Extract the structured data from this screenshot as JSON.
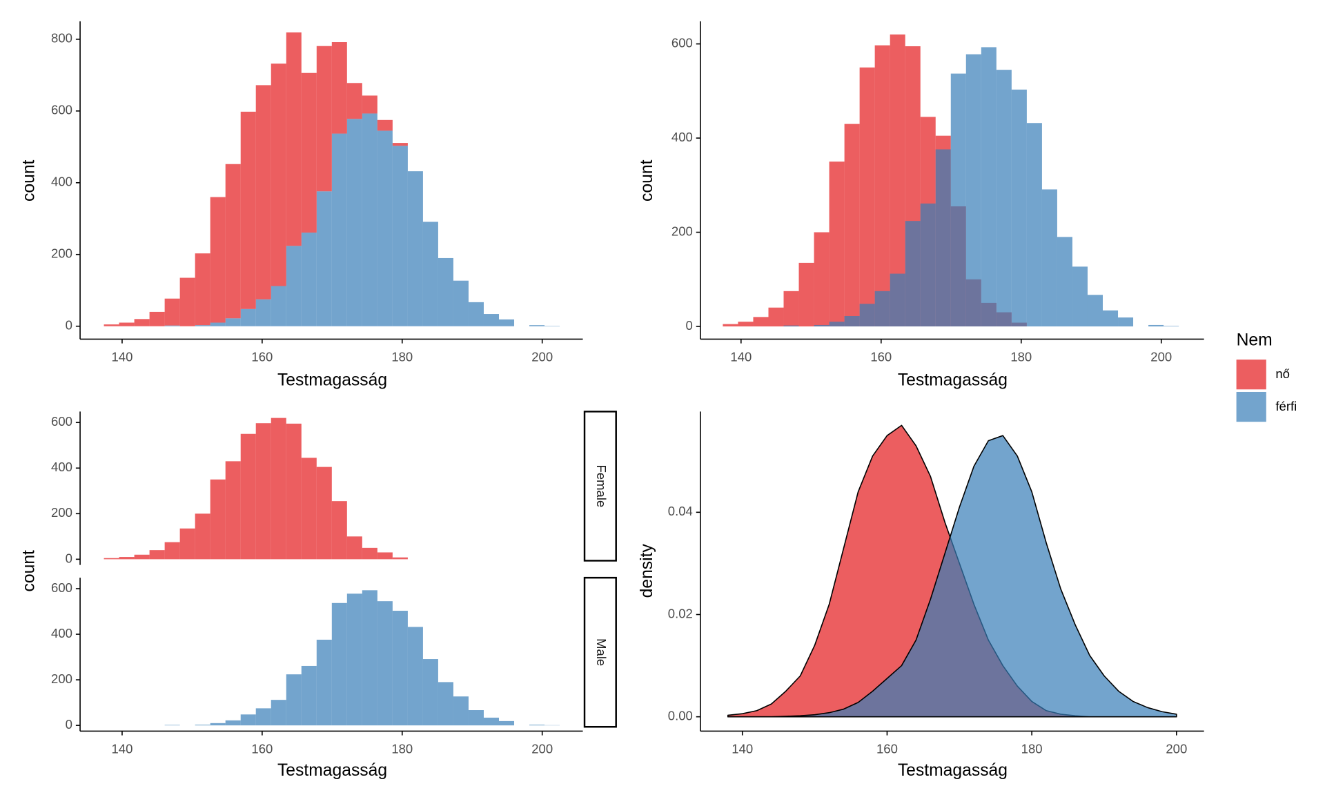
{
  "chart_data": [
    {
      "type": "histogram",
      "stacked": true,
      "x_label": "Testmagasság",
      "y_label": "count",
      "opacity": 0.7,
      "bins": [
        137.4,
        139.57,
        141.74,
        143.91,
        146.08,
        148.25,
        150.42,
        152.59,
        154.76,
        156.93,
        159.1,
        161.27,
        163.44,
        165.61,
        167.78,
        169.95,
        172.12,
        174.29,
        176.46,
        178.63,
        180.8,
        182.97,
        185.14,
        187.31,
        189.48,
        191.65,
        193.82,
        195.99,
        198.16,
        200.33,
        202.5
      ],
      "series": [
        {
          "name": "nő",
          "color": "#E41A1C",
          "values": [
            5,
            10,
            20,
            40,
            75,
            135,
            200,
            350,
            430,
            550,
            597,
            620,
            595,
            445,
            405,
            255,
            100,
            50,
            30,
            8,
            0,
            0,
            0,
            0,
            0,
            0,
            0,
            0,
            0,
            0
          ]
        },
        {
          "name": "férfi",
          "color": "#377EB8",
          "values": [
            0,
            0,
            0,
            0,
            2,
            0,
            3,
            10,
            22,
            48,
            75,
            112,
            224,
            261,
            376,
            537,
            578,
            593,
            545,
            503,
            432,
            291,
            190,
            127,
            67,
            34,
            19,
            0,
            3,
            1
          ]
        }
      ],
      "xlim": [
        134,
        205.8
      ],
      "ylim": [
        -36,
        850
      ],
      "xticks": [
        140,
        160,
        180,
        200
      ],
      "yticks": [
        0,
        200,
        400,
        600,
        800
      ]
    },
    {
      "type": "histogram",
      "stacked": false,
      "x_label": "Testmagasság",
      "y_label": "count",
      "opacity": 0.7,
      "legend_title": "Nem",
      "legend": "right",
      "bins": [
        137.4,
        139.57,
        141.74,
        143.91,
        146.08,
        148.25,
        150.42,
        152.59,
        154.76,
        156.93,
        159.1,
        161.27,
        163.44,
        165.61,
        167.78,
        169.95,
        172.12,
        174.29,
        176.46,
        178.63,
        180.8,
        182.97,
        185.14,
        187.31,
        189.48,
        191.65,
        193.82,
        195.99,
        198.16,
        200.33,
        202.5
      ],
      "series": [
        {
          "name": "nő",
          "color": "#E41A1C",
          "values": [
            5,
            10,
            20,
            40,
            75,
            135,
            200,
            350,
            430,
            550,
            597,
            620,
            595,
            445,
            405,
            255,
            100,
            50,
            30,
            8,
            0,
            0,
            0,
            0,
            0,
            0,
            0,
            0,
            0,
            0
          ]
        },
        {
          "name": "férfi",
          "color": "#377EB8",
          "values": [
            0,
            0,
            0,
            0,
            2,
            0,
            3,
            10,
            22,
            48,
            75,
            112,
            224,
            261,
            376,
            537,
            578,
            593,
            545,
            503,
            432,
            291,
            190,
            127,
            67,
            34,
            19,
            0,
            3,
            1
          ]
        }
      ],
      "xlim": [
        134.2,
        206.1
      ],
      "ylim": [
        -27,
        648
      ],
      "xticks": [
        140,
        160,
        180,
        200
      ],
      "yticks": [
        0,
        200,
        400,
        600
      ]
    },
    {
      "type": "histogram",
      "facets": true,
      "x_label": "Testmagasság",
      "y_label": "count",
      "opacity": 0.7,
      "bins": [
        137.4,
        139.57,
        141.74,
        143.91,
        146.08,
        148.25,
        150.42,
        152.59,
        154.76,
        156.93,
        159.1,
        161.27,
        163.44,
        165.61,
        167.78,
        169.95,
        172.12,
        174.29,
        176.46,
        178.63,
        180.8,
        182.97,
        185.14,
        187.31,
        189.48,
        191.65,
        193.82,
        195.99,
        198.16,
        200.33,
        202.5
      ],
      "series": [
        {
          "name": "Female",
          "color": "#E41A1C",
          "values": [
            5,
            10,
            20,
            40,
            75,
            135,
            200,
            350,
            430,
            550,
            597,
            620,
            595,
            445,
            405,
            255,
            100,
            50,
            30,
            8,
            0,
            0,
            0,
            0,
            0,
            0,
            0,
            0,
            0,
            0
          ]
        },
        {
          "name": "Male",
          "color": "#377EB8",
          "values": [
            0,
            0,
            0,
            0,
            2,
            0,
            3,
            10,
            22,
            48,
            75,
            112,
            224,
            261,
            376,
            537,
            578,
            593,
            545,
            503,
            432,
            291,
            190,
            127,
            67,
            34,
            19,
            0,
            3,
            1
          ]
        }
      ],
      "xlim": [
        134,
        205.8
      ],
      "ylim": [
        -25,
        648
      ],
      "xticks": [
        140,
        160,
        180,
        200
      ],
      "yticks": [
        0,
        200,
        400,
        600
      ]
    },
    {
      "type": "density",
      "x_label": "Testmagasság",
      "y_label": "density",
      "opacity": 0.7,
      "x": [
        138,
        140,
        142,
        144,
        146,
        148,
        150,
        152,
        154,
        156,
        158,
        160,
        162,
        164,
        166,
        168,
        170,
        172,
        174,
        176,
        178,
        180,
        182,
        184,
        186,
        188,
        190,
        192,
        194,
        196,
        198,
        200
      ],
      "series": [
        {
          "name": "nő",
          "color": "#E41A1C",
          "values": [
            0.0003,
            0.0006,
            0.0012,
            0.0025,
            0.005,
            0.008,
            0.014,
            0.022,
            0.033,
            0.044,
            0.051,
            0.055,
            0.057,
            0.053,
            0.047,
            0.038,
            0.03,
            0.022,
            0.015,
            0.01,
            0.006,
            0.003,
            0.0012,
            0.0005,
            0.0002,
            0,
            0,
            0,
            0,
            0,
            0,
            0
          ]
        },
        {
          "name": "férfi",
          "color": "#377EB8",
          "values": [
            0,
            0,
            0,
            0,
            0.0001,
            0.0002,
            0.0004,
            0.0008,
            0.0015,
            0.0028,
            0.005,
            0.0075,
            0.01,
            0.015,
            0.023,
            0.032,
            0.041,
            0.049,
            0.054,
            0.055,
            0.051,
            0.044,
            0.034,
            0.025,
            0.018,
            0.012,
            0.008,
            0.005,
            0.003,
            0.0018,
            0.001,
            0.0005
          ]
        }
      ],
      "xlim": [
        134.2,
        203.8
      ],
      "ylim": [
        -0.0028,
        0.0597
      ],
      "xticks": [
        140,
        160,
        180,
        200
      ],
      "yticks": [
        {
          "value": 0,
          "label": "0.00"
        },
        {
          "value": 0.02,
          "label": "0.02"
        },
        {
          "value": 0.04,
          "label": "0.04"
        }
      ]
    }
  ]
}
